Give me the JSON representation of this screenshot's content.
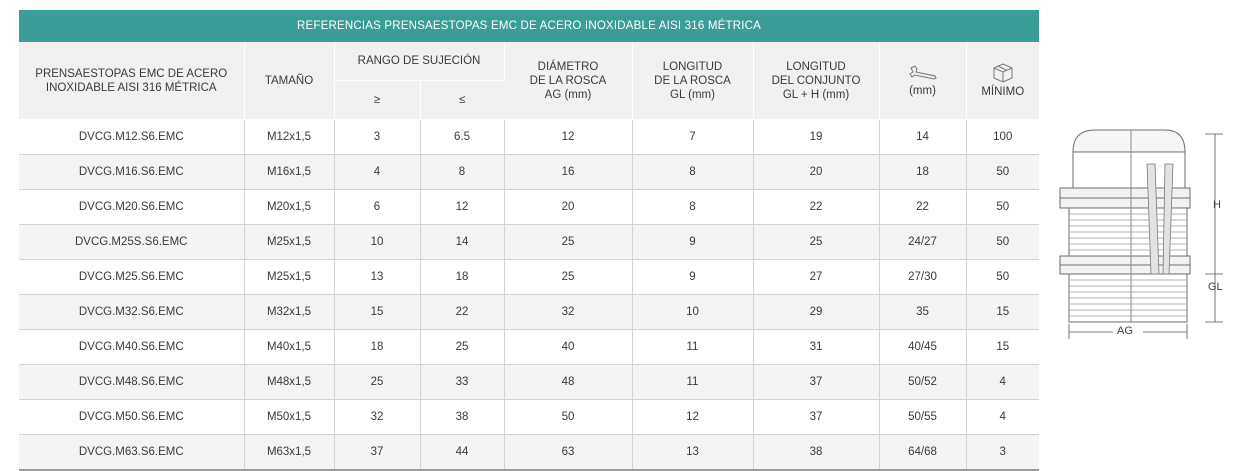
{
  "title": "REFERENCIAS PRENSAESTOPAS EMC DE ACERO INOXIDABLE AISI 316 MÉTRICA",
  "headers": {
    "product_line1": "PRENSAESTOPAS EMC DE ACERO",
    "product_line2": "INOXIDABLE AISI 316 MÉTRICA",
    "size": "TAMAÑO",
    "clamping_range": "RANGO DE SUJECIÓN",
    "min_symbol": "≥",
    "max_symbol": "≤",
    "thread_diameter_l1": "DIÁMETRO",
    "thread_diameter_l2": "DE LA ROSCA",
    "thread_diameter_l3": "AG (mm)",
    "thread_length_l1": "LONGITUD",
    "thread_length_l2": "DE LA ROSCA",
    "thread_length_l3": "GL (mm)",
    "total_length_l1": "LONGITUD",
    "total_length_l2": "DEL CONJUNTO",
    "total_length_l3": "GL + H (mm)",
    "wrench_unit": "(mm)",
    "minimum": "MÍNIMO"
  },
  "icons": {
    "wrench": "wrench-icon",
    "package": "box-icon"
  },
  "rows": [
    [
      "DVCG.M12.S6.EMC",
      "M12x1,5",
      "3",
      "6.5",
      "12",
      "7",
      "19",
      "14",
      "100"
    ],
    [
      "DVCG.M16.S6.EMC",
      "M16x1,5",
      "4",
      "8",
      "16",
      "8",
      "20",
      "18",
      "50"
    ],
    [
      "DVCG.M20.S6.EMC",
      "M20x1,5",
      "6",
      "12",
      "20",
      "8",
      "22",
      "22",
      "50"
    ],
    [
      "DVCG.M25S.S6.EMC",
      "M25x1,5",
      "10",
      "14",
      "25",
      "9",
      "25",
      "24/27",
      "50"
    ],
    [
      "DVCG.M25.S6.EMC",
      "M25x1,5",
      "13",
      "18",
      "25",
      "9",
      "27",
      "27/30",
      "50"
    ],
    [
      "DVCG.M32.S6.EMC",
      "M32x1,5",
      "15",
      "22",
      "32",
      "10",
      "29",
      "35",
      "15"
    ],
    [
      "DVCG.M40.S6.EMC",
      "M40x1,5",
      "18",
      "25",
      "40",
      "11",
      "31",
      "40/45",
      "15"
    ],
    [
      "DVCG.M48.S6.EMC",
      "M48x1,5",
      "25",
      "33",
      "48",
      "11",
      "37",
      "50/52",
      "4"
    ],
    [
      "DVCG.M50.S6.EMC",
      "M50x1,5",
      "32",
      "38",
      "50",
      "12",
      "37",
      "50/55",
      "4"
    ],
    [
      "DVCG.M63.S6.EMC",
      "M63x1,5",
      "37",
      "44",
      "63",
      "13",
      "38",
      "64/68",
      "3"
    ]
  ],
  "drawing": {
    "label_h": "H",
    "label_gl": "GL",
    "label_ag": "AG"
  },
  "colors": {
    "title_bg": "#3a9e96",
    "header_bg": "#f1f1f1",
    "alt_row": "#f4f4f4"
  }
}
